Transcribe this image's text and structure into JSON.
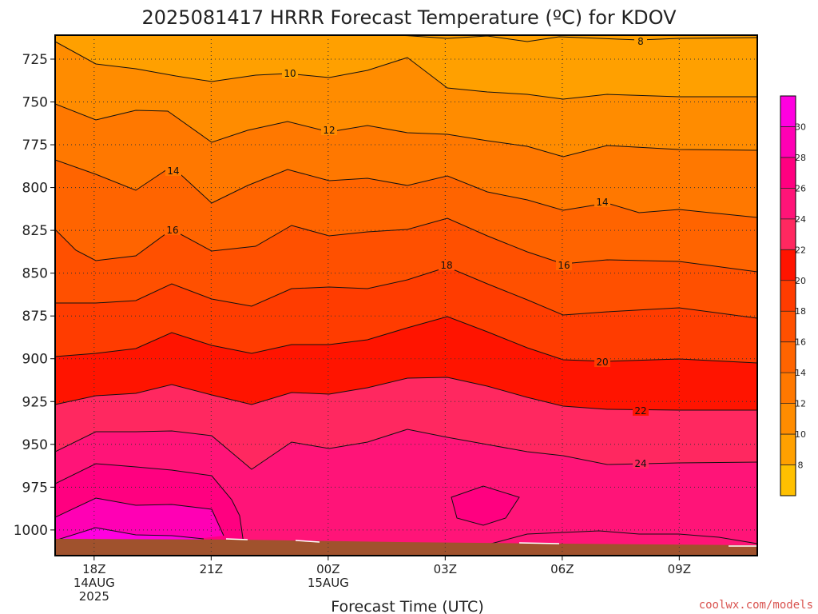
{
  "chart_data": {
    "type": "heatmap",
    "title": "2025081417 HRRR Forecast Temperature (ºC) for KDOV",
    "xlabel": "Forecast Time (UTC)",
    "ylabel": "",
    "y_scale": "pressure (hPa), increasing downward",
    "ylim": [
      1015,
      711
    ],
    "y_ticks": [
      725,
      750,
      775,
      800,
      825,
      850,
      875,
      900,
      925,
      950,
      975,
      1000
    ],
    "x_ticks": [
      {
        "hour": 18,
        "lines": [
          "18Z",
          "14AUG",
          "2025"
        ]
      },
      {
        "hour": 21,
        "lines": [
          "21Z"
        ]
      },
      {
        "hour": 24,
        "lines": [
          "00Z",
          "15AUG"
        ]
      },
      {
        "hour": 27,
        "lines": [
          "03Z"
        ]
      },
      {
        "hour": 30,
        "lines": [
          "06Z"
        ]
      },
      {
        "hour": 33,
        "lines": [
          "09Z"
        ]
      }
    ],
    "xlim": [
      17,
      35
    ],
    "grid": true,
    "colorbar": {
      "levels": [
        6,
        8,
        10,
        12,
        14,
        16,
        18,
        20,
        22,
        24,
        26,
        28,
        30,
        32
      ],
      "tick_labels": [
        "8",
        "10",
        "12",
        "14",
        "16",
        "18",
        "20",
        "22",
        "24",
        "26",
        "28",
        "30"
      ],
      "colors": [
        "#ffc000",
        "#ffa000",
        "#ff8c00",
        "#ff7800",
        "#ff6400",
        "#ff5000",
        "#ff3c00",
        "#ff1400",
        "#ff2860",
        "#ff1478",
        "#ff0080",
        "#ff00b4",
        "#ff00e0"
      ]
    },
    "contour_labels": [
      "8",
      "10",
      "12",
      "14",
      "14",
      "16",
      "16",
      "18",
      "20",
      "22",
      "24"
    ],
    "surface_color": "#a0522d",
    "credit": "coolwx.com/models"
  }
}
